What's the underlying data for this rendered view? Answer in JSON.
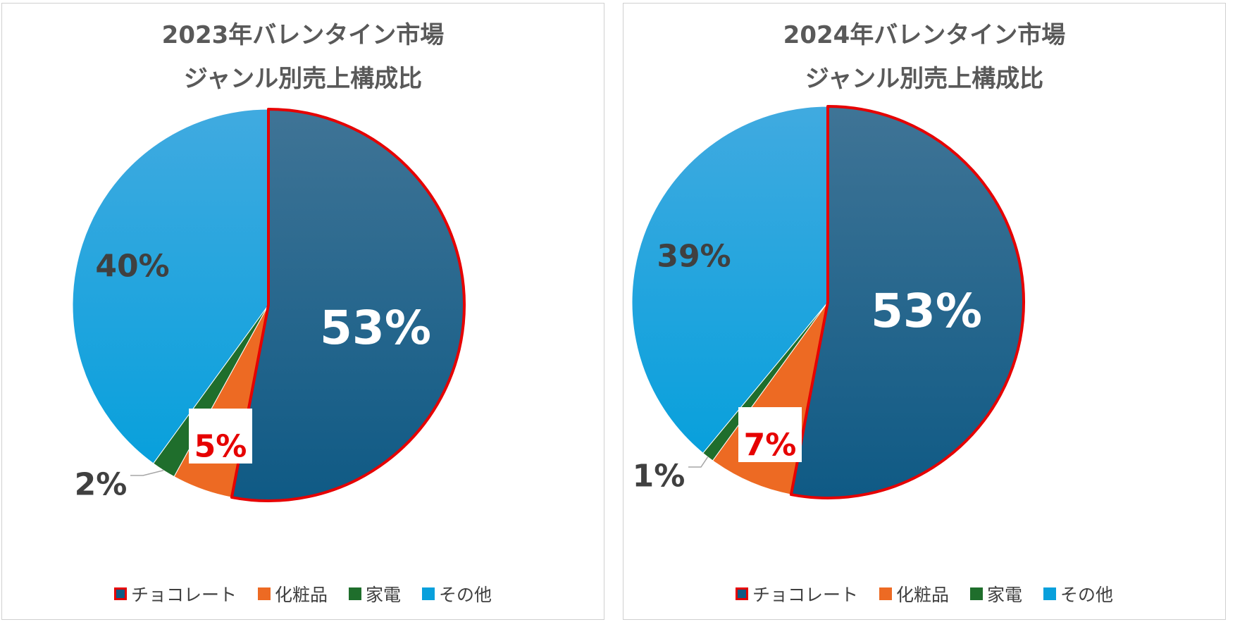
{
  "colors": {
    "highlight": "#e60000",
    "label_dark": "#404040",
    "title": "#595959"
  },
  "chart_data": [
    {
      "type": "pie",
      "title": [
        "2023年バレンタイン市場",
        "ジャンル別売上構成比"
      ],
      "series": [
        {
          "name": "チョコレート",
          "value": 53,
          "label": "53%",
          "color": "#0f5a85",
          "color_top": "#3f7496",
          "highlight": true
        },
        {
          "name": "化粧品",
          "value": 5,
          "label": "5%",
          "color": "#ed6a23",
          "highlight": true
        },
        {
          "name": "家電",
          "value": 2,
          "label": "2%",
          "color": "#1f6e2c"
        },
        {
          "name": "その他",
          "value": 40,
          "label": "40%",
          "color": "#08a0dc",
          "color_top": "#40aae0"
        }
      ],
      "legend": "bottom"
    },
    {
      "type": "pie",
      "title": [
        "2024年バレンタイン市場",
        "ジャンル別売上構成比"
      ],
      "series": [
        {
          "name": "チョコレート",
          "value": 53,
          "label": "53%",
          "color": "#0f5a85",
          "color_top": "#3f7496",
          "highlight": true
        },
        {
          "name": "化粧品",
          "value": 7,
          "label": "7%",
          "color": "#ed6a23",
          "highlight": true
        },
        {
          "name": "家電",
          "value": 1,
          "label": "1%",
          "color": "#1f6e2c"
        },
        {
          "name": "その他",
          "value": 39,
          "label": "39%",
          "color": "#08a0dc",
          "color_top": "#40aae0"
        }
      ],
      "legend": "bottom"
    }
  ]
}
